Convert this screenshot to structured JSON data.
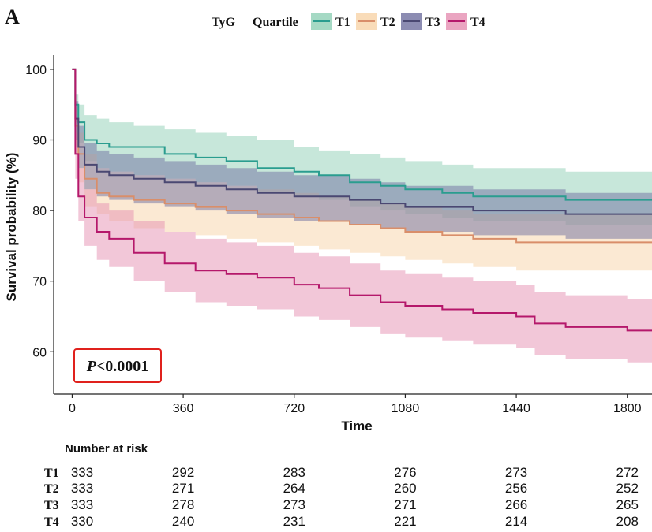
{
  "panel_label": "A",
  "legend": {
    "title_prefix": "TyG",
    "title": "Quartile",
    "entries": [
      {
        "label": "T1",
        "line": "#2a9d8f",
        "fill": "#8fcfb5"
      },
      {
        "label": "T2",
        "line": "#d98e6a",
        "fill": "#f7d3a8"
      },
      {
        "label": "T3",
        "line": "#4a4872",
        "fill": "#6f6f9f"
      },
      {
        "label": "T4",
        "line": "#b5186b",
        "fill": "#e58fb1"
      }
    ]
  },
  "pvalue": {
    "italic": "P",
    "rest": "<0.0001",
    "border_color": "#e0211d"
  },
  "chart_data": {
    "type": "line",
    "title": "",
    "xlabel": "Time",
    "ylabel": "Survival probability (%)",
    "xlim": [
      -60,
      1880
    ],
    "ylim": [
      54,
      102
    ],
    "xticks": [
      0,
      360,
      720,
      1080,
      1440,
      1800
    ],
    "yticks": [
      60,
      70,
      80,
      90,
      100
    ],
    "series": [
      {
        "name": "T1",
        "points": [
          [
            0,
            100
          ],
          [
            10,
            95
          ],
          [
            20,
            92.5
          ],
          [
            40,
            90
          ],
          [
            80,
            89.5
          ],
          [
            120,
            89
          ],
          [
            200,
            89
          ],
          [
            300,
            88
          ],
          [
            400,
            87.5
          ],
          [
            500,
            87
          ],
          [
            600,
            86
          ],
          [
            720,
            85.5
          ],
          [
            800,
            85
          ],
          [
            900,
            84
          ],
          [
            1000,
            83.5
          ],
          [
            1080,
            83
          ],
          [
            1200,
            82.5
          ],
          [
            1300,
            82
          ],
          [
            1440,
            82
          ],
          [
            1600,
            81.5
          ],
          [
            1880,
            81.5
          ]
        ],
        "upper": [
          [
            0,
            100
          ],
          [
            10,
            96.5
          ],
          [
            20,
            95
          ],
          [
            40,
            93.5
          ],
          [
            80,
            93
          ],
          [
            120,
            92.5
          ],
          [
            200,
            92
          ],
          [
            300,
            91.5
          ],
          [
            400,
            91
          ],
          [
            500,
            90.5
          ],
          [
            600,
            90
          ],
          [
            720,
            89
          ],
          [
            800,
            88.5
          ],
          [
            900,
            88
          ],
          [
            1000,
            87.5
          ],
          [
            1080,
            87
          ],
          [
            1200,
            86.5
          ],
          [
            1300,
            86
          ],
          [
            1440,
            86
          ],
          [
            1600,
            85.5
          ],
          [
            1880,
            85.5
          ]
        ],
        "lower": [
          [
            0,
            100
          ],
          [
            10,
            92.5
          ],
          [
            20,
            89.5
          ],
          [
            40,
            87
          ],
          [
            80,
            86
          ],
          [
            120,
            85.5
          ],
          [
            200,
            85
          ],
          [
            300,
            84.5
          ],
          [
            400,
            84
          ],
          [
            500,
            83.5
          ],
          [
            600,
            82.5
          ],
          [
            720,
            82
          ],
          [
            800,
            81.5
          ],
          [
            900,
            80.5
          ],
          [
            1000,
            80
          ],
          [
            1080,
            79.5
          ],
          [
            1200,
            79
          ],
          [
            1300,
            78.5
          ],
          [
            1440,
            78.5
          ],
          [
            1600,
            78
          ],
          [
            1880,
            78
          ]
        ]
      },
      {
        "name": "T2",
        "points": [
          [
            0,
            100
          ],
          [
            10,
            92
          ],
          [
            20,
            88
          ],
          [
            40,
            84.5
          ],
          [
            80,
            82.5
          ],
          [
            120,
            82
          ],
          [
            200,
            81.5
          ],
          [
            300,
            81
          ],
          [
            400,
            80.5
          ],
          [
            500,
            80
          ],
          [
            600,
            79.5
          ],
          [
            720,
            79
          ],
          [
            800,
            78.5
          ],
          [
            900,
            78
          ],
          [
            1000,
            77.5
          ],
          [
            1080,
            77
          ],
          [
            1200,
            76.5
          ],
          [
            1300,
            76
          ],
          [
            1440,
            75.5
          ],
          [
            1600,
            75.5
          ],
          [
            1880,
            75.5
          ]
        ],
        "upper": [
          [
            0,
            100
          ],
          [
            10,
            94.5
          ],
          [
            20,
            91
          ],
          [
            40,
            88
          ],
          [
            80,
            86
          ],
          [
            120,
            85.5
          ],
          [
            200,
            85
          ],
          [
            300,
            84.5
          ],
          [
            400,
            84
          ],
          [
            500,
            83.5
          ],
          [
            600,
            83
          ],
          [
            720,
            82.5
          ],
          [
            800,
            82
          ],
          [
            900,
            81.5
          ],
          [
            1000,
            81
          ],
          [
            1080,
            80.5
          ],
          [
            1200,
            80
          ],
          [
            1300,
            79.5
          ],
          [
            1440,
            79.5
          ],
          [
            1600,
            79.5
          ],
          [
            1880,
            79.5
          ]
        ],
        "lower": [
          [
            0,
            100
          ],
          [
            10,
            89
          ],
          [
            20,
            84
          ],
          [
            40,
            80.5
          ],
          [
            80,
            79.5
          ],
          [
            120,
            78.5
          ],
          [
            200,
            77.5
          ],
          [
            300,
            77
          ],
          [
            400,
            76.5
          ],
          [
            500,
            76
          ],
          [
            600,
            75.5
          ],
          [
            720,
            75
          ],
          [
            800,
            74.5
          ],
          [
            900,
            74
          ],
          [
            1000,
            73.5
          ],
          [
            1080,
            73
          ],
          [
            1200,
            72.5
          ],
          [
            1300,
            72
          ],
          [
            1440,
            71.5
          ],
          [
            1600,
            71.5
          ],
          [
            1880,
            71
          ]
        ]
      },
      {
        "name": "T3",
        "points": [
          [
            0,
            100
          ],
          [
            10,
            93
          ],
          [
            20,
            89
          ],
          [
            40,
            86.5
          ],
          [
            80,
            85.5
          ],
          [
            120,
            85
          ],
          [
            200,
            84.5
          ],
          [
            300,
            84
          ],
          [
            400,
            83.5
          ],
          [
            500,
            83
          ],
          [
            600,
            82.5
          ],
          [
            720,
            82
          ],
          [
            800,
            82
          ],
          [
            900,
            81.5
          ],
          [
            1000,
            81
          ],
          [
            1080,
            80.5
          ],
          [
            1200,
            80.5
          ],
          [
            1300,
            80
          ],
          [
            1440,
            80
          ],
          [
            1600,
            79.5
          ],
          [
            1880,
            79.5
          ]
        ],
        "upper": [
          [
            0,
            100
          ],
          [
            10,
            95.5
          ],
          [
            20,
            92
          ],
          [
            40,
            89.5
          ],
          [
            80,
            88.5
          ],
          [
            120,
            88
          ],
          [
            200,
            87.5
          ],
          [
            300,
            87
          ],
          [
            400,
            86.5
          ],
          [
            500,
            86
          ],
          [
            600,
            85.5
          ],
          [
            720,
            85
          ],
          [
            800,
            85
          ],
          [
            900,
            84.5
          ],
          [
            1000,
            84
          ],
          [
            1080,
            83.5
          ],
          [
            1200,
            83.5
          ],
          [
            1300,
            83
          ],
          [
            1440,
            83
          ],
          [
            1600,
            82.5
          ],
          [
            1880,
            82.5
          ]
        ],
        "lower": [
          [
            0,
            100
          ],
          [
            10,
            90
          ],
          [
            20,
            86
          ],
          [
            40,
            83
          ],
          [
            80,
            82
          ],
          [
            120,
            81.5
          ],
          [
            200,
            81
          ],
          [
            300,
            80.5
          ],
          [
            400,
            80
          ],
          [
            500,
            79.5
          ],
          [
            600,
            79
          ],
          [
            720,
            78.5
          ],
          [
            800,
            78.5
          ],
          [
            900,
            78
          ],
          [
            1000,
            77.5
          ],
          [
            1080,
            77
          ],
          [
            1200,
            77
          ],
          [
            1300,
            76.5
          ],
          [
            1440,
            76.5
          ],
          [
            1600,
            76
          ],
          [
            1880,
            76
          ]
        ]
      },
      {
        "name": "T4",
        "points": [
          [
            0,
            100
          ],
          [
            10,
            88
          ],
          [
            20,
            82
          ],
          [
            40,
            79
          ],
          [
            80,
            77
          ],
          [
            120,
            76
          ],
          [
            200,
            74
          ],
          [
            300,
            72.5
          ],
          [
            400,
            71.5
          ],
          [
            500,
            71
          ],
          [
            600,
            70.5
          ],
          [
            720,
            69.5
          ],
          [
            800,
            69
          ],
          [
            900,
            68
          ],
          [
            1000,
            67
          ],
          [
            1080,
            66.5
          ],
          [
            1200,
            66
          ],
          [
            1300,
            65.5
          ],
          [
            1440,
            65
          ],
          [
            1500,
            64
          ],
          [
            1600,
            63.5
          ],
          [
            1800,
            63
          ],
          [
            1880,
            63
          ]
        ],
        "upper": [
          [
            0,
            100
          ],
          [
            10,
            91
          ],
          [
            20,
            86
          ],
          [
            40,
            83
          ],
          [
            80,
            81
          ],
          [
            120,
            80
          ],
          [
            200,
            78.5
          ],
          [
            300,
            77
          ],
          [
            400,
            76
          ],
          [
            500,
            75.5
          ],
          [
            600,
            75
          ],
          [
            720,
            74
          ],
          [
            800,
            73.5
          ],
          [
            900,
            72.5
          ],
          [
            1000,
            71.5
          ],
          [
            1080,
            71
          ],
          [
            1200,
            70.5
          ],
          [
            1300,
            70
          ],
          [
            1440,
            69.5
          ],
          [
            1500,
            68.5
          ],
          [
            1600,
            68
          ],
          [
            1800,
            67.5
          ],
          [
            1880,
            67.5
          ]
        ],
        "lower": [
          [
            0,
            100
          ],
          [
            10,
            84.5
          ],
          [
            20,
            78.5
          ],
          [
            40,
            75
          ],
          [
            80,
            73
          ],
          [
            120,
            72
          ],
          [
            200,
            70
          ],
          [
            300,
            68.5
          ],
          [
            400,
            67
          ],
          [
            500,
            66.5
          ],
          [
            600,
            66
          ],
          [
            720,
            65
          ],
          [
            800,
            64.5
          ],
          [
            900,
            63.5
          ],
          [
            1000,
            62.5
          ],
          [
            1080,
            62
          ],
          [
            1200,
            61.5
          ],
          [
            1300,
            61
          ],
          [
            1440,
            60.5
          ],
          [
            1500,
            59.5
          ],
          [
            1600,
            59
          ],
          [
            1800,
            58.5
          ],
          [
            1880,
            58
          ]
        ]
      }
    ]
  },
  "risk_table": {
    "title": "Number at risk",
    "rows": [
      {
        "label": "T1",
        "values": [
          "333",
          "292",
          "283",
          "276",
          "273",
          "272"
        ]
      },
      {
        "label": "T2",
        "values": [
          "333",
          "271",
          "264",
          "260",
          "256",
          "252"
        ]
      },
      {
        "label": "T3",
        "values": [
          "333",
          "278",
          "273",
          "271",
          "266",
          "265"
        ]
      },
      {
        "label": "T4",
        "values": [
          "330",
          "240",
          "231",
          "221",
          "214",
          "208"
        ]
      }
    ]
  }
}
